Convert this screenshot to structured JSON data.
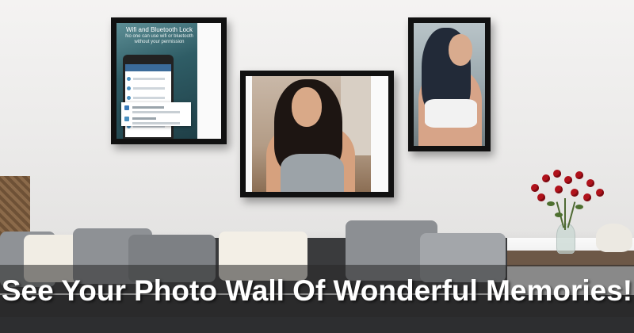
{
  "headline": "See Your Photo Wall Of Wonderful Memories!",
  "frames": [
    {
      "title": "Wifi and Bluetooth Lock",
      "subtitle": "No one can use wifi or bluetooth without your permission"
    },
    {
      "content": "portrait-photo"
    },
    {
      "content": "portrait-photo"
    }
  ],
  "colors": {
    "frame": "#111111",
    "wall": "#efeeed",
    "sofa": "#3a3b3d",
    "banner_text": "#ffffff",
    "roses": "#b0121b"
  }
}
